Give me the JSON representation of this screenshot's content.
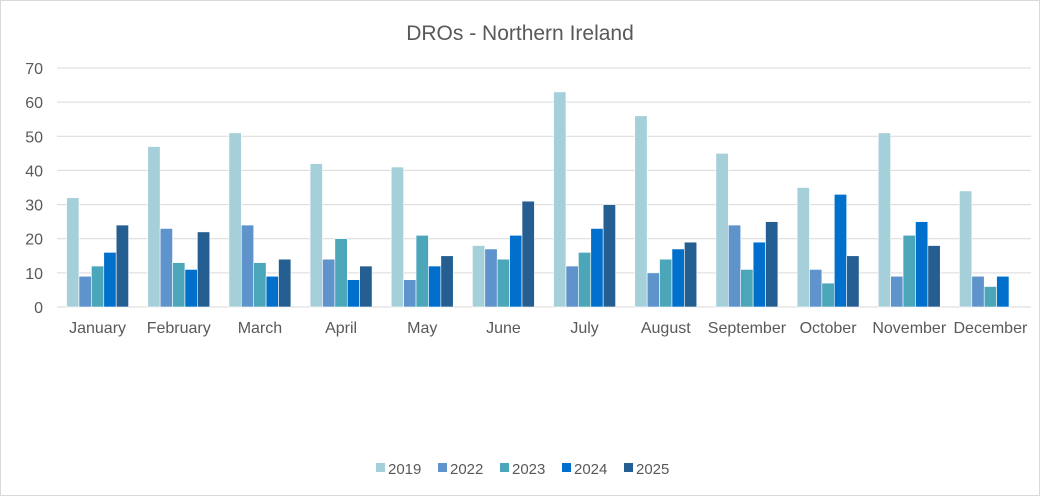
{
  "chart_data": {
    "type": "bar",
    "title": "DROs - Northern Ireland",
    "xlabel": "",
    "ylabel": "",
    "ylim": [
      0,
      70
    ],
    "yticks": [
      0,
      10,
      20,
      30,
      40,
      50,
      60,
      70
    ],
    "grid": true,
    "legend_position": "bottom",
    "categories": [
      "January",
      "February",
      "March",
      "April",
      "May",
      "June",
      "July",
      "August",
      "September",
      "October",
      "November",
      "December"
    ],
    "series": [
      {
        "name": "2019",
        "color": "#a5d0da",
        "values": [
          32,
          47,
          51,
          42,
          41,
          18,
          63,
          56,
          45,
          35,
          51,
          34
        ]
      },
      {
        "name": "2022",
        "color": "#5f93cb",
        "values": [
          9,
          23,
          24,
          14,
          8,
          17,
          12,
          10,
          24,
          11,
          9,
          9
        ]
      },
      {
        "name": "2023",
        "color": "#4aa6b8",
        "values": [
          12,
          13,
          13,
          20,
          21,
          14,
          16,
          14,
          11,
          7,
          21,
          6
        ]
      },
      {
        "name": "2024",
        "color": "#0070cc",
        "values": [
          16,
          11,
          9,
          8,
          12,
          21,
          23,
          17,
          19,
          33,
          25,
          9
        ]
      },
      {
        "name": "2025",
        "color": "#255e91",
        "values": [
          24,
          22,
          14,
          12,
          15,
          31,
          30,
          19,
          25,
          15,
          18,
          null
        ]
      }
    ]
  }
}
